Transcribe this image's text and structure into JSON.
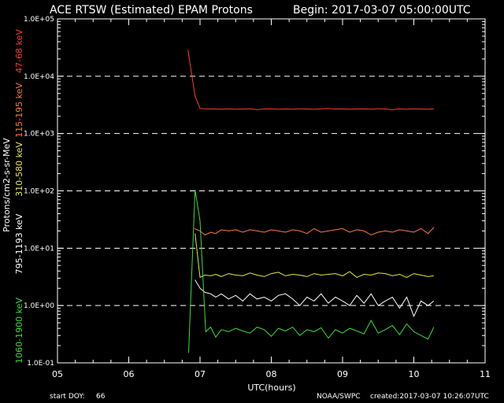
{
  "chart_data": {
    "type": "line",
    "title": "ACE RTSW (Estimated) EPAM Protons",
    "begin_label": "Begin: 2017-03-07 05:00:00UTC",
    "xlabel": "UTC(hours)",
    "ylabel": "Protons/cm2-s-sr-MeV",
    "y_scale": "log",
    "ylim": [
      0.1,
      100000
    ],
    "xlim": [
      5,
      11
    ],
    "grid": "dashed horizontal at decades",
    "x_ticks": [
      "05",
      "06",
      "07",
      "08",
      "09",
      "10",
      "11"
    ],
    "y_ticks": [
      "1.0E-01",
      "1.0E+00",
      "1.0E+01",
      "1.0E+02",
      "1.0E+03",
      "1.0E+04",
      "1.0E+05"
    ],
    "footer": {
      "start_doy_label": "start DOY:",
      "start_doy_value": "66",
      "credit": "NOAA/SWPC",
      "created": "created:2017-03-07 10:26:07UTC"
    },
    "series": [
      {
        "name": "47-68 keV",
        "color": "#ff3b2f",
        "x": [
          6.83,
          6.93,
          7.0,
          7.1,
          7.2,
          7.3,
          7.4,
          7.5,
          7.6,
          7.7,
          7.8,
          7.9,
          8.0,
          8.1,
          8.2,
          8.3,
          8.4,
          8.5,
          8.6,
          8.7,
          8.8,
          8.9,
          9.0,
          9.1,
          9.2,
          9.3,
          9.4,
          9.5,
          9.6,
          9.7,
          9.8,
          9.9,
          10.0,
          10.1,
          10.2,
          10.28
        ],
        "y": [
          29000,
          4500,
          2750,
          2680,
          2700,
          2650,
          2700,
          2660,
          2680,
          2700,
          2620,
          2680,
          2700,
          2650,
          2690,
          2660,
          2700,
          2680,
          2650,
          2700,
          2730,
          2680,
          2700,
          2660,
          2690,
          2700,
          2650,
          2720,
          2680,
          2600,
          2700,
          2650,
          2700,
          2680,
          2650,
          2700
        ]
      },
      {
        "name": "115-195 keV",
        "color": "#ff7a3c",
        "x": [
          6.92,
          7.0,
          7.07,
          7.15,
          7.22,
          7.3,
          7.4,
          7.5,
          7.6,
          7.7,
          7.8,
          7.9,
          8.0,
          8.1,
          8.2,
          8.3,
          8.4,
          8.5,
          8.6,
          8.7,
          8.8,
          8.9,
          9.0,
          9.1,
          9.2,
          9.3,
          9.4,
          9.5,
          9.6,
          9.7,
          9.8,
          9.9,
          10.0,
          10.1,
          10.2,
          10.28
        ],
        "y": [
          22,
          20,
          17,
          19,
          18,
          21,
          20,
          21,
          19,
          21,
          20,
          19,
          21,
          20,
          19,
          21,
          20,
          18,
          22,
          19,
          20,
          21,
          22,
          19,
          21,
          20,
          17,
          19,
          20,
          19,
          21,
          20,
          19,
          22,
          18,
          23
        ]
      },
      {
        "name": "310-580 keV",
        "color": "#e8e83c",
        "x": [
          6.93,
          7.0,
          7.07,
          7.15,
          7.22,
          7.3,
          7.4,
          7.5,
          7.6,
          7.7,
          7.8,
          7.9,
          8.0,
          8.1,
          8.2,
          8.3,
          8.4,
          8.5,
          8.6,
          8.7,
          8.8,
          8.9,
          9.0,
          9.1,
          9.2,
          9.3,
          9.4,
          9.5,
          9.6,
          9.7,
          9.8,
          9.9,
          10.0,
          10.1,
          10.2,
          10.28
        ],
        "y": [
          18,
          3.1,
          3.4,
          3.3,
          3.5,
          3.2,
          3.6,
          3.4,
          3.3,
          3.7,
          3.4,
          3.2,
          3.6,
          3.8,
          3.3,
          3.5,
          3.4,
          3.2,
          3.6,
          3.4,
          3.5,
          3.6,
          3.3,
          3.9,
          3.1,
          3.5,
          3.4,
          3.7,
          3.6,
          3.3,
          3.5,
          3.1,
          3.6,
          3.4,
          3.2,
          3.3
        ]
      },
      {
        "name": "795-1193 keV",
        "color": "#ffffff",
        "x": [
          6.93,
          7.0,
          7.07,
          7.15,
          7.22,
          7.3,
          7.4,
          7.5,
          7.6,
          7.7,
          7.8,
          7.9,
          8.0,
          8.1,
          8.2,
          8.3,
          8.4,
          8.5,
          8.6,
          8.7,
          8.8,
          8.9,
          9.0,
          9.1,
          9.2,
          9.3,
          9.4,
          9.5,
          9.6,
          9.7,
          9.8,
          9.9,
          10.0,
          10.1,
          10.2,
          10.28
        ],
        "y": [
          2.8,
          2.0,
          1.7,
          1.6,
          1.4,
          1.6,
          1.3,
          1.5,
          1.2,
          1.6,
          1.3,
          1.4,
          1.2,
          1.5,
          1.6,
          1.3,
          1.0,
          1.4,
          1.2,
          1.6,
          1.1,
          1.4,
          1.2,
          1.0,
          1.5,
          1.1,
          1.6,
          1.0,
          1.2,
          1.4,
          0.9,
          1.4,
          0.65,
          1.2,
          1.0,
          1.2
        ]
      },
      {
        "name": "1060-1900 keV",
        "color": "#3cdc3c",
        "x": [
          6.84,
          6.93,
          7.0,
          7.08,
          7.15,
          7.22,
          7.3,
          7.4,
          7.5,
          7.6,
          7.7,
          7.8,
          7.9,
          8.0,
          8.1,
          8.2,
          8.3,
          8.4,
          8.5,
          8.6,
          8.7,
          8.8,
          8.9,
          9.0,
          9.1,
          9.2,
          9.3,
          9.4,
          9.5,
          9.6,
          9.7,
          9.8,
          9.9,
          10.0,
          10.1,
          10.2,
          10.28
        ],
        "y": [
          0.15,
          105,
          30,
          0.35,
          0.42,
          0.28,
          0.38,
          0.35,
          0.4,
          0.36,
          0.33,
          0.42,
          0.38,
          0.29,
          0.4,
          0.36,
          0.42,
          0.3,
          0.38,
          0.35,
          0.41,
          0.27,
          0.38,
          0.33,
          0.4,
          0.36,
          0.32,
          0.55,
          0.33,
          0.38,
          0.45,
          0.31,
          0.48,
          0.35,
          0.3,
          0.26,
          0.42
        ]
      }
    ]
  }
}
